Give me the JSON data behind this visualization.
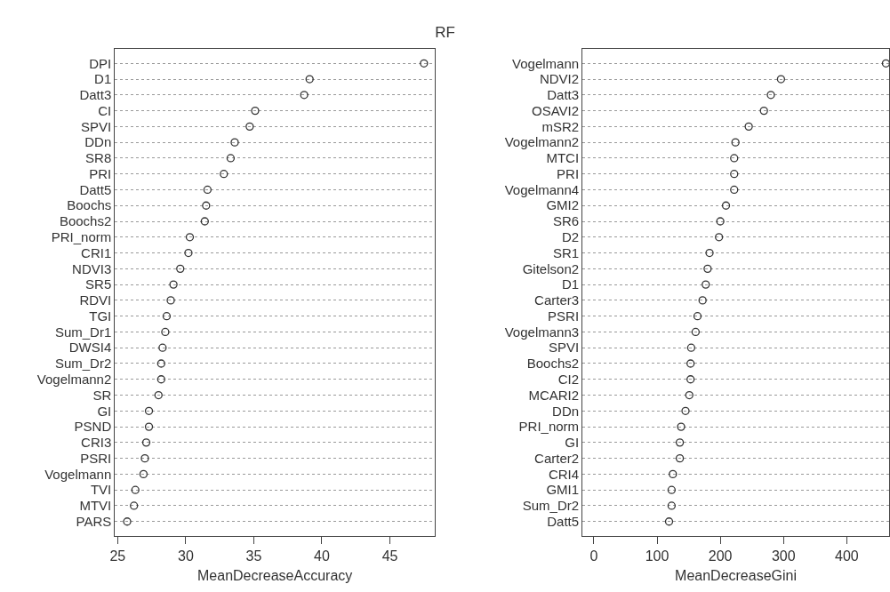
{
  "chart_data": [
    {
      "type": "scatter",
      "title": "RF",
      "xlabel": "MeanDecreaseAccuracy",
      "categories": [
        "DPI",
        "D1",
        "Datt3",
        "CI",
        "SPVI",
        "DDn",
        "SR8",
        "PRI",
        "Datt5",
        "Boochs",
        "Boochs2",
        "PRI_norm",
        "CRI1",
        "NDVI3",
        "SR5",
        "RDVI",
        "TGI",
        "Sum_Dr1",
        "DWSI4",
        "Sum_Dr2",
        "Vogelmann2",
        "SR",
        "GI",
        "PSND",
        "CRI3",
        "PSRI",
        "Vogelmann",
        "TVI",
        "MTVI",
        "PARS"
      ],
      "values": [
        47.5,
        39.1,
        38.7,
        35.1,
        34.7,
        33.6,
        33.3,
        32.8,
        31.6,
        31.5,
        31.4,
        30.3,
        30.2,
        29.6,
        29.1,
        28.9,
        28.6,
        28.5,
        28.3,
        28.2,
        28.2,
        28.0,
        27.3,
        27.3,
        27.1,
        27.0,
        26.9,
        26.3,
        26.2,
        25.7
      ],
      "color": "#333333",
      "marker": "circle",
      "grid": "y",
      "orientation": "horizontal",
      "xlim": [
        24.8,
        48.3
      ],
      "xticks": [
        25,
        30,
        35,
        40,
        45
      ]
    },
    {
      "type": "scatter",
      "xlabel": "MeanDecreaseGini",
      "categories": [
        "Vogelmann",
        "NDVI2",
        "Datt3",
        "OSAVI2",
        "mSR2",
        "Vogelmann2",
        "MTCI",
        "PRI",
        "Vogelmann4",
        "GMI2",
        "SR6",
        "D2",
        "SR1",
        "Gitelson2",
        "D1",
        "Carter3",
        "PSRI",
        "Vogelmann3",
        "SPVI",
        "Boochs2",
        "CI2",
        "MCARI2",
        "DDn",
        "PRI_norm",
        "GI",
        "Carter2",
        "CRI4",
        "GMI1",
        "Sum_Dr2",
        "Datt5"
      ],
      "values": [
        462,
        296,
        280,
        269,
        245,
        224,
        222,
        222,
        222,
        209,
        200,
        198,
        183,
        180,
        177,
        172,
        164,
        161,
        154,
        153,
        153,
        151,
        145,
        138,
        136,
        136,
        125,
        123,
        123,
        119
      ],
      "color": "#333333",
      "marker": "circle",
      "grid": "y",
      "orientation": "horizontal",
      "xlim": [
        -18,
        467
      ],
      "xticks": [
        0,
        100,
        200,
        300,
        400
      ]
    }
  ]
}
